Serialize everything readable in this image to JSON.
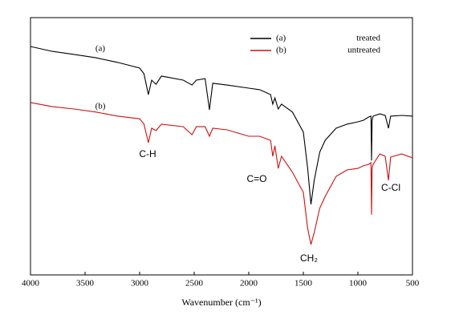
{
  "chart_data": {
    "type": "line",
    "x_label": "Wavenumber (cm⁻¹)",
    "xlim": [
      4000,
      500
    ],
    "xticks": [
      4000,
      3500,
      3000,
      2500,
      2000,
      1500,
      1000,
      500
    ],
    "ylim": [
      0,
      100
    ],
    "legend": "upper right",
    "x": [
      4000,
      3800,
      3600,
      3400,
      3200,
      3000,
      2960,
      2920,
      2890,
      2850,
      2800,
      2600,
      2520,
      2480,
      2400,
      2360,
      2330,
      2200,
      2000,
      1900,
      1800,
      1780,
      1760,
      1730,
      1700,
      1600,
      1500,
      1460,
      1430,
      1400,
      1350,
      1300,
      1200,
      1100,
      1000,
      950,
      900,
      880,
      875,
      870,
      860,
      800,
      750,
      720,
      700,
      600,
      500
    ],
    "series": [
      {
        "name": "treated",
        "label": "(a)",
        "color": "#000000",
        "values": [
          88.8,
          86.9,
          85.7,
          84.4,
          82.6,
          80.4,
          78.2,
          70.1,
          75.7,
          74.1,
          77.3,
          75.7,
          73.8,
          75.7,
          76.3,
          64.2,
          74.5,
          73.8,
          72.6,
          72.0,
          70.1,
          66.4,
          68.8,
          64.5,
          66.4,
          63.3,
          55.5,
          41.4,
          27.4,
          36.8,
          47.7,
          52.3,
          57.0,
          58.6,
          59.5,
          60.1,
          61.4,
          61.7,
          44.5,
          60.1,
          61.7,
          62.6,
          62.0,
          57.0,
          61.7,
          62.0,
          61.7
        ]
      },
      {
        "name": "untreated",
        "label": "(b)",
        "color": "#cc1111",
        "values": [
          67.0,
          65.4,
          64.5,
          63.3,
          61.7,
          60.7,
          58.6,
          51.4,
          57.0,
          56.1,
          58.6,
          57.6,
          54.5,
          57.6,
          57.6,
          53.9,
          57.0,
          56.4,
          53.9,
          53.9,
          52.3,
          46.1,
          50.2,
          41.4,
          46.1,
          39.9,
          32.1,
          18.1,
          11.8,
          16.5,
          25.9,
          30.5,
          38.3,
          40.8,
          41.4,
          42.4,
          43.0,
          43.6,
          23.4,
          41.4,
          43.0,
          47.0,
          46.1,
          36.8,
          45.8,
          47.0,
          45.5
        ]
      }
    ],
    "annotations": [
      "C-H",
      "C=O",
      "CH₂",
      "C-Cl"
    ]
  }
}
